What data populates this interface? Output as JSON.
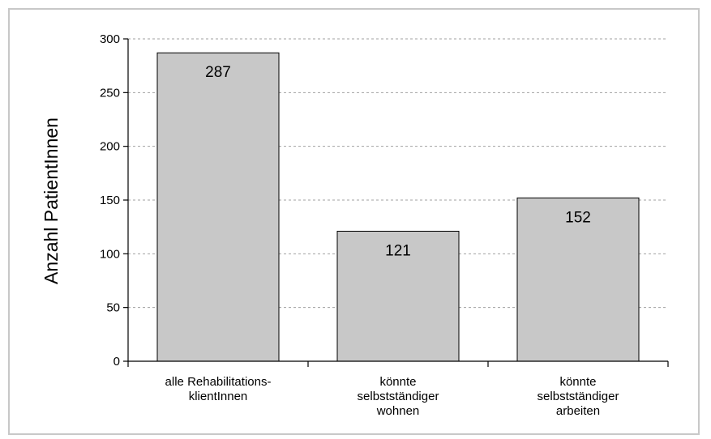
{
  "chart_data": {
    "type": "bar",
    "title": "",
    "xlabel": "",
    "ylabel": "Anzahl PatientInnen",
    "categories": [
      [
        "alle Rehabilitations-",
        "klientInnen"
      ],
      [
        "könnte",
        "selbstständiger",
        "wohnen"
      ],
      [
        "könnte",
        "selbstständiger",
        "arbeiten"
      ]
    ],
    "values": [
      287,
      121,
      152
    ],
    "data_labels": [
      "287",
      "121",
      "152"
    ],
    "ylim": [
      0,
      300
    ],
    "yticks": [
      0,
      50,
      100,
      150,
      200,
      250,
      300
    ],
    "grid": "horizontal dashed",
    "legend": "none",
    "colors": {
      "bar_fill": "#c8c8c8",
      "bar_stroke": "#000000",
      "grid": "#a0a0a0",
      "frame": "#c8c8c8"
    }
  }
}
